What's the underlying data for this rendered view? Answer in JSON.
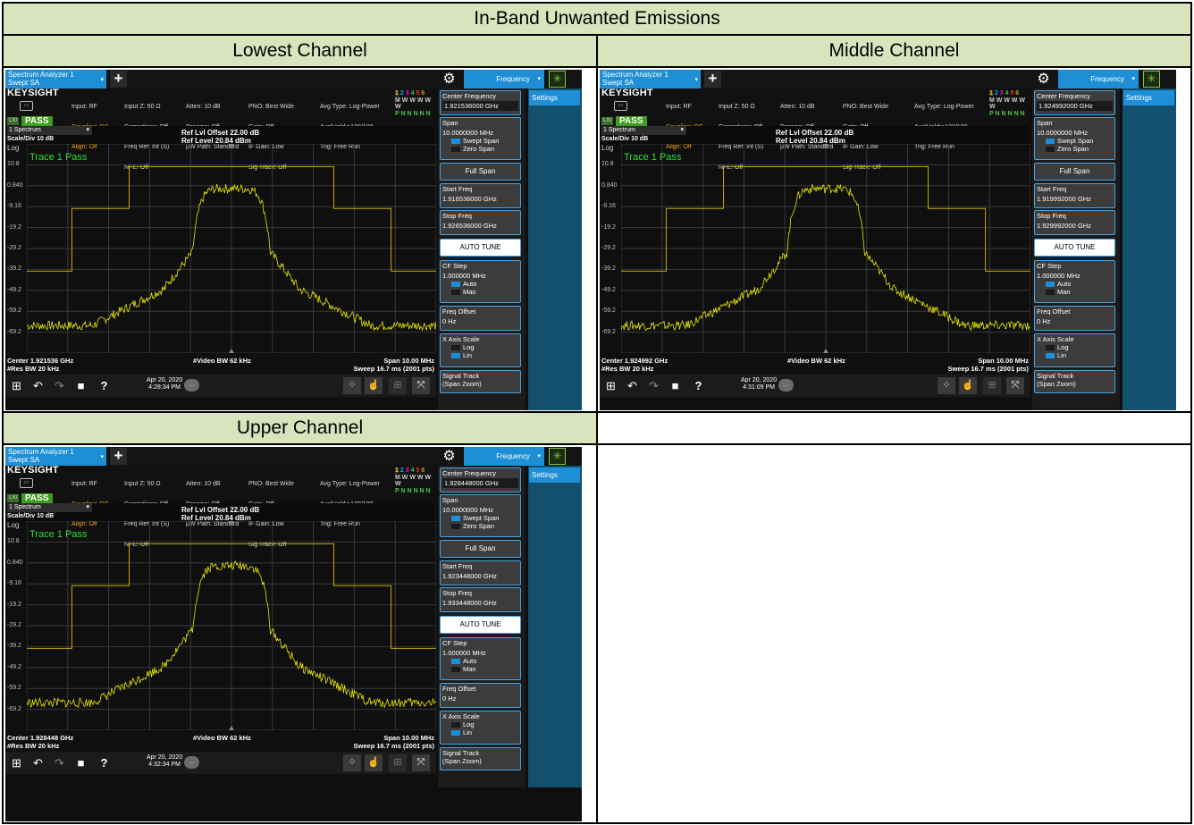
{
  "document": {
    "title": "In-Band Unwanted Emissions",
    "column_headers": [
      "Lowest Channel",
      "Middle Channel"
    ],
    "row2_header": "Upper Channel"
  },
  "analyzer_common": {
    "tab_line1": "Spectrum Analyzer 1",
    "tab_line2": "Swept SA",
    "frequency_tab": "Frequency",
    "settings_tab": "Settings",
    "brand": "KEYSIGHT",
    "lxi": "LXI",
    "pass_badge": "PASS",
    "status": {
      "col1": [
        "Input: RF",
        "Coupling: DC",
        "Align: Off"
      ],
      "col2": [
        "Input Z: 50 Ω",
        "Corrections: Off",
        "Freq Ref: Int (S)",
        "NFE: Off"
      ],
      "col3": [
        "Atten: 10 dB",
        "Preamp: Off",
        "µW Path: Standard"
      ],
      "col4": [
        "PNO: Best Wide",
        "Gate: Off",
        "IF Gain: Low",
        "Sig Track: Off"
      ],
      "col5": [
        "Avg Type: Log-Power",
        "Avg|Hold:>100/100",
        "Trig: Free Run"
      ]
    },
    "trace_numbers": [
      "1",
      "2",
      "3",
      "4",
      "5",
      "6"
    ],
    "trace_types": "M W W W W W",
    "trace_detectors": "P N N N N N",
    "window_select": "1 Spectrum",
    "scale_div": "Scale/Div 10 dB",
    "log": "Log",
    "ref_offset": "Ref Lvl Offset 22.00 dB",
    "ref_level": "Ref Level 20.84 dBm",
    "trace_pass": "Trace 1 Pass",
    "y_ticks": [
      "10.8",
      "0.840",
      "-9.16",
      "-19.2",
      "-29.2",
      "-39.2",
      "-49.2",
      "-59.2",
      "-69.2"
    ],
    "res_bw": "#Res BW 20 kHz",
    "video_bw": "#Video BW 62 kHz",
    "span_footer": "Span 10.00 MHz",
    "sweep_footer": "Sweep 16.7 ms (2001 pts)",
    "softkeys": {
      "center_freq": "Center Frequency",
      "span": "Span",
      "span_value": "10.0000000 MHz",
      "swept_span": "Swept Span",
      "zero_span": "Zero Span",
      "full_span": "Full Span",
      "start_freq": "Start Freq",
      "stop_freq": "Stop Freq",
      "auto_tune": "AUTO TUNE",
      "cf_step": "CF Step",
      "cf_step_value": "1.000000 MHz",
      "auto": "Auto",
      "man": "Man",
      "freq_offset": "Freq Offset",
      "freq_offset_value": "0 Hz",
      "x_axis_scale": "X Axis Scale",
      "log": "Log",
      "lin": "Lin",
      "signal_track": "Signal Track",
      "span_zoom": "(Span Zoom)"
    },
    "date": "Apr 20, 2020",
    "colors": {
      "trace": "#e6e600",
      "limit": "#c8a800",
      "accent": "#1e8fd6",
      "pass": "#3f9d1f"
    }
  },
  "screens": [
    {
      "name": "lowest",
      "center_footer": "Center 1.921536 GHz",
      "center_freq": "1.921536000 GHz",
      "start_freq": "1.916536000 GHz",
      "stop_freq": "1.926536000 GHz",
      "time": "4:28:34 PM"
    },
    {
      "name": "middle",
      "center_footer": "Center 1.924992 GHz",
      "center_freq": "1.924992000 GHz",
      "start_freq": "1.919992000 GHz",
      "stop_freq": "1.929992000 GHz",
      "time": "4:31:09 PM"
    },
    {
      "name": "upper",
      "center_footer": "Center 1.928448 GHz",
      "center_freq": "1.928448000 GHz",
      "start_freq": "1.923448000 GHz",
      "stop_freq": "1.933448000 GHz",
      "time": "4:32:34 PM"
    }
  ]
}
